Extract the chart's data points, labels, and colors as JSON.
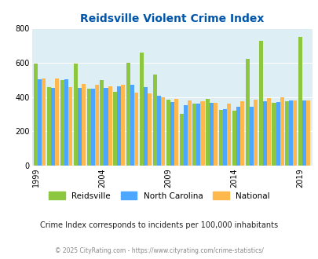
{
  "title": "Reidsville Violent Crime Index",
  "years": [
    1999,
    2000,
    2001,
    2002,
    2003,
    2004,
    2005,
    2006,
    2007,
    2008,
    2009,
    2010,
    2011,
    2012,
    2013,
    2014,
    2015,
    2016,
    2017,
    2018,
    2019
  ],
  "reidsville": [
    595,
    460,
    500,
    595,
    450,
    500,
    430,
    600,
    660,
    530,
    385,
    305,
    360,
    390,
    325,
    320,
    625,
    730,
    365,
    375,
    750
  ],
  "nc": [
    505,
    455,
    505,
    455,
    450,
    455,
    465,
    470,
    460,
    410,
    370,
    355,
    360,
    365,
    330,
    345,
    345,
    375,
    370,
    380,
    380
  ],
  "national": [
    510,
    510,
    460,
    475,
    470,
    465,
    470,
    425,
    420,
    400,
    390,
    380,
    375,
    365,
    360,
    375,
    385,
    395,
    400,
    380,
    380
  ],
  "reidsville_color": "#8dc63f",
  "nc_color": "#4da6ff",
  "national_color": "#ffb84d",
  "bg_color": "#deeef5",
  "title_color": "#0055aa",
  "subtitle": "Crime Index corresponds to incidents per 100,000 inhabitants",
  "footer": "© 2025 CityRating.com - https://www.cityrating.com/crime-statistics/",
  "ylim": [
    0,
    800
  ],
  "yticks": [
    0,
    200,
    400,
    600,
    800
  ],
  "xtick_years": [
    1999,
    2004,
    2009,
    2014,
    2019
  ]
}
